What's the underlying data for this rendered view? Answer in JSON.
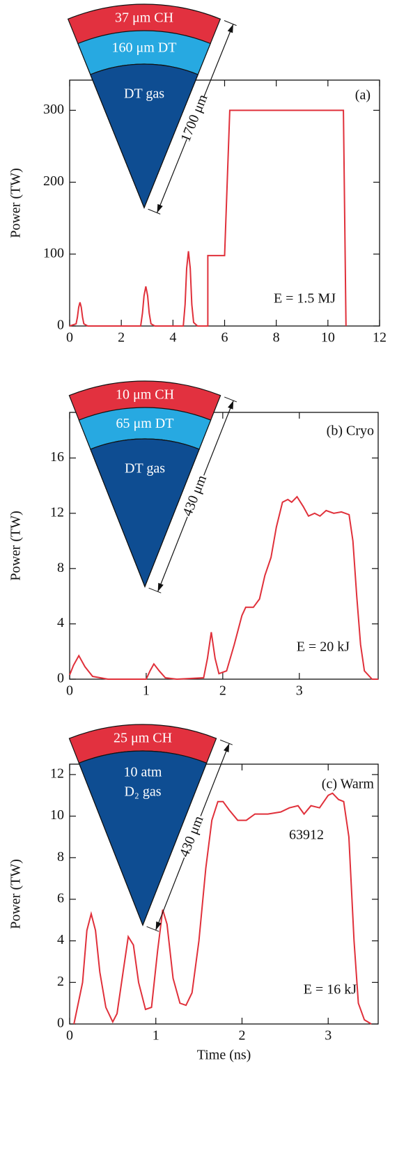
{
  "chart_data": [
    {
      "type": "line",
      "ylabel": "Power (TW)",
      "color": "#e0303a",
      "annotations": [
        "(a)",
        "E = 1.5 MJ"
      ],
      "inset": {
        "layers": [
          "37 μm CH",
          "160 μm DT",
          "DT gas"
        ],
        "dimension": "1700 μm"
      },
      "xlim": [
        0,
        12
      ],
      "xticks": [
        0,
        2,
        4,
        6,
        8,
        10,
        12
      ],
      "ylim": [
        0,
        342
      ],
      "yticks": [
        0,
        100,
        200,
        300
      ],
      "x": [
        0,
        0.25,
        0.3,
        0.35,
        0.4,
        0.45,
        0.5,
        0.55,
        0.7,
        2.75,
        2.82,
        2.88,
        2.95,
        3.02,
        3.08,
        3.15,
        3.3,
        4.4,
        4.47,
        4.53,
        4.6,
        4.67,
        4.73,
        4.8,
        4.95,
        5.35,
        5.35,
        6.0,
        6.2,
        10.6,
        10.7
      ],
      "values": [
        0,
        3,
        12,
        26,
        33,
        26,
        12,
        3,
        0,
        0,
        18,
        42,
        55,
        42,
        18,
        3,
        0,
        0,
        30,
        80,
        104,
        80,
        30,
        5,
        0,
        0,
        98,
        98,
        300,
        300,
        0
      ]
    },
    {
      "type": "line",
      "ylabel": "Power (TW)",
      "color": "#e0303a",
      "annotations": [
        "(b) Cryo",
        "E = 20 kJ"
      ],
      "inset": {
        "layers": [
          "10 μm CH",
          "65 μm DT",
          "DT gas"
        ],
        "dimension": "430 μm"
      },
      "xlim": [
        0,
        4.03
      ],
      "xticks": [
        0,
        1,
        2,
        3
      ],
      "ylim": [
        0,
        19.3
      ],
      "yticks": [
        0,
        4,
        8,
        12,
        16
      ],
      "x": [
        0,
        0.05,
        0.12,
        0.2,
        0.3,
        0.5,
        1.0,
        1.05,
        1.1,
        1.17,
        1.25,
        1.4,
        1.75,
        1.8,
        1.85,
        1.9,
        1.95,
        2.05,
        2.15,
        2.25,
        2.3,
        2.4,
        2.48,
        2.55,
        2.63,
        2.7,
        2.78,
        2.85,
        2.9,
        2.97,
        3.05,
        3.12,
        3.2,
        3.27,
        3.35,
        3.45,
        3.55,
        3.65,
        3.7,
        3.75,
        3.8,
        3.85,
        3.95,
        4.03
      ],
      "values": [
        0.3,
        1,
        1.7,
        0.9,
        0.2,
        0,
        0,
        0.6,
        1.1,
        0.6,
        0.1,
        0,
        0.1,
        1.5,
        3.4,
        1.5,
        0.4,
        0.6,
        2.5,
        4.6,
        5.2,
        5.2,
        5.8,
        7.5,
        8.8,
        11,
        12.8,
        13,
        12.8,
        13.2,
        12.5,
        11.8,
        12,
        11.8,
        12.2,
        12,
        12.1,
        11.9,
        10,
        6,
        2.5,
        0.6,
        0,
        0
      ]
    },
    {
      "type": "line",
      "ylabel": "Power (TW)",
      "xlabel": "Time (ns)",
      "color": "#e0303a",
      "annotations": [
        "(c) Warm",
        "63912",
        "E = 16 kJ"
      ],
      "inset": {
        "layers": [
          "25 μm CH",
          "10 atm",
          "D₂ gas"
        ],
        "dimension": "430 μm"
      },
      "xlim": [
        0,
        3.58
      ],
      "xticks": [
        0,
        1,
        2,
        3
      ],
      "ylim": [
        0,
        12.5
      ],
      "yticks": [
        0,
        2,
        4,
        6,
        8,
        10,
        12
      ],
      "x": [
        0.05,
        0.15,
        0.2,
        0.25,
        0.3,
        0.35,
        0.42,
        0.5,
        0.55,
        0.62,
        0.68,
        0.74,
        0.8,
        0.88,
        0.95,
        1.02,
        1.08,
        1.13,
        1.2,
        1.28,
        1.35,
        1.42,
        1.5,
        1.58,
        1.65,
        1.72,
        1.78,
        1.85,
        1.95,
        2.05,
        2.15,
        2.3,
        2.45,
        2.55,
        2.65,
        2.72,
        2.8,
        2.9,
        3.0,
        3.05,
        3.12,
        3.18,
        3.24,
        3.3,
        3.35,
        3.42,
        3.5
      ],
      "values": [
        0,
        2,
        4.5,
        5.3,
        4.5,
        2.5,
        0.8,
        0.1,
        0.5,
        2.5,
        4.2,
        3.8,
        2,
        0.7,
        0.8,
        3.5,
        5.5,
        4.8,
        2.2,
        1,
        0.9,
        1.5,
        4,
        7.5,
        9.8,
        10.7,
        10.7,
        10.3,
        9.8,
        9.8,
        10.1,
        10.1,
        10.2,
        10.4,
        10.5,
        10.1,
        10.5,
        10.4,
        11,
        11.1,
        10.8,
        10.7,
        9,
        4,
        1,
        0.2,
        0
      ]
    }
  ]
}
